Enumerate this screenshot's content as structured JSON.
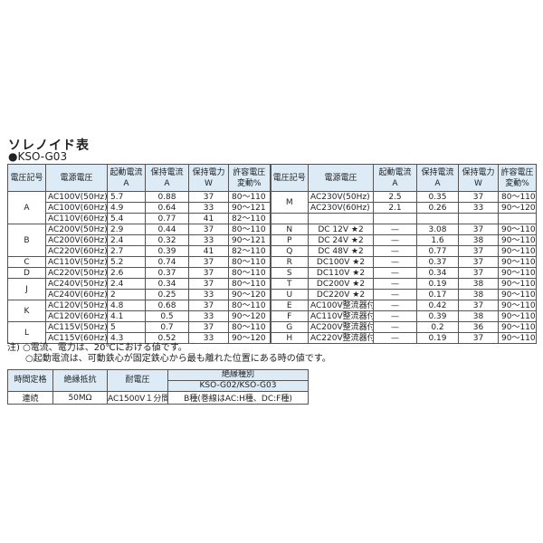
{
  "title": "ソレノイド表",
  "model": "●KSO-G03",
  "headers": [
    "電圧記号",
    "電源電圧",
    "起動電流\nA",
    "保持電流\nA",
    "保持電力\nW",
    "許容電圧\n変動%"
  ],
  "left_groups": [
    {
      "code": "A",
      "rows": [
        [
          "AC100V(50Hz)",
          "5.7",
          "0.88",
          "37",
          "80〜110"
        ],
        [
          "AC100V(60Hz)",
          "4.9",
          "0.64",
          "33",
          "90〜121"
        ],
        [
          "AC110V(60Hz)",
          "5.4",
          "0.77",
          "41",
          "82〜110"
        ]
      ]
    },
    {
      "code": "B",
      "rows": [
        [
          "AC200V(50Hz)",
          "2.9",
          "0.44",
          "37",
          "80〜110"
        ],
        [
          "AC200V(60Hz)",
          "2.4",
          "0.32",
          "33",
          "90〜121"
        ],
        [
          "AC220V(60Hz)",
          "2.7",
          "0.39",
          "41",
          "82〜110"
        ]
      ]
    },
    {
      "code": "C",
      "rows": [
        [
          "AC110V(50Hz)",
          "5.2",
          "0.74",
          "37",
          "80〜110"
        ]
      ]
    },
    {
      "code": "D",
      "rows": [
        [
          "AC220V(50Hz)",
          "2.6",
          "0.37",
          "37",
          "80〜110"
        ]
      ]
    },
    {
      "code": "J",
      "rows": [
        [
          "AC240V(50Hz)",
          "2.4",
          "0.34",
          "37",
          "80〜110"
        ],
        [
          "AC240V(60Hz)",
          "2",
          "0.25",
          "33",
          "90〜120"
        ]
      ]
    },
    {
      "code": "K",
      "rows": [
        [
          "AC120V(50Hz)",
          "4.8",
          "0.68",
          "37",
          "80〜110"
        ],
        [
          "AC120V(60Hz)",
          "4.1",
          "0.5",
          "33",
          "90〜120"
        ]
      ]
    },
    {
      "code": "L",
      "rows": [
        [
          "AC115V(50Hz)",
          "5",
          "0.7",
          "37",
          "80〜110"
        ],
        [
          "AC115V(60Hz)",
          "4.3",
          "0.52",
          "33",
          "90〜120"
        ]
      ]
    }
  ],
  "right_groups": [
    {
      "code": "M",
      "rows": [
        [
          "AC230V(50Hz)",
          "2.5",
          "0.35",
          "37",
          "80〜110"
        ],
        [
          "AC230V(60Hz)",
          "2.1",
          "0.26",
          "33",
          "90〜120"
        ]
      ]
    },
    {
      "code": "",
      "rows": [
        [
          "",
          "",
          "",
          "",
          ""
        ]
      ]
    },
    {
      "code": "N",
      "rows": [
        [
          "DC 12V ★2",
          "—",
          "3.08",
          "37",
          "90〜110"
        ]
      ]
    },
    {
      "code": "P",
      "rows": [
        [
          "DC 24V ★2",
          "—",
          "1.6",
          "38",
          "90〜110"
        ]
      ]
    },
    {
      "code": "Q",
      "rows": [
        [
          "DC 48V ★2",
          "—",
          "0.77",
          "37",
          "90〜110"
        ]
      ]
    },
    {
      "code": "R",
      "rows": [
        [
          "DC100V ★2",
          "—",
          "0.37",
          "37",
          "90〜110"
        ]
      ]
    },
    {
      "code": "S",
      "rows": [
        [
          "DC110V ★2",
          "—",
          "0.34",
          "37",
          "90〜110"
        ]
      ]
    },
    {
      "code": "T",
      "rows": [
        [
          "DC200V ★2",
          "—",
          "0.19",
          "38",
          "90〜110"
        ]
      ]
    },
    {
      "code": "U",
      "rows": [
        [
          "DC220V ★2",
          "—",
          "0.17",
          "38",
          "90〜110"
        ]
      ]
    },
    {
      "code": "E",
      "rows": [
        [
          "AC100V整流器付",
          "—",
          "0.42",
          "37",
          "90〜110"
        ]
      ]
    },
    {
      "code": "F",
      "rows": [
        [
          "AC110V整流器付",
          "—",
          "0.39",
          "38",
          "90〜110"
        ]
      ]
    },
    {
      "code": "G",
      "rows": [
        [
          "AC200V整流器付",
          "—",
          "0.2",
          "36",
          "90〜110"
        ]
      ]
    },
    {
      "code": "H",
      "rows": [
        [
          "AC220V整流器付",
          "—",
          "0.19",
          "37",
          "90〜110"
        ]
      ]
    }
  ],
  "notes": [
    "注) ○電流、電力は、20℃における値です。",
    "　　○起動電流は、可動鉄心が固定鉄心から最も離れた位置にある時の値です。"
  ],
  "insulation": {
    "headers": [
      "時間定格",
      "絶縁抵抗",
      "耐電圧",
      "絶縁種別"
    ],
    "subheader": "KSO-G02/KSO-G03",
    "row": [
      "連続",
      "50MΩ",
      "AC1500V１分間",
      "B種(巻線はAC:H種、DC:F種)"
    ]
  }
}
